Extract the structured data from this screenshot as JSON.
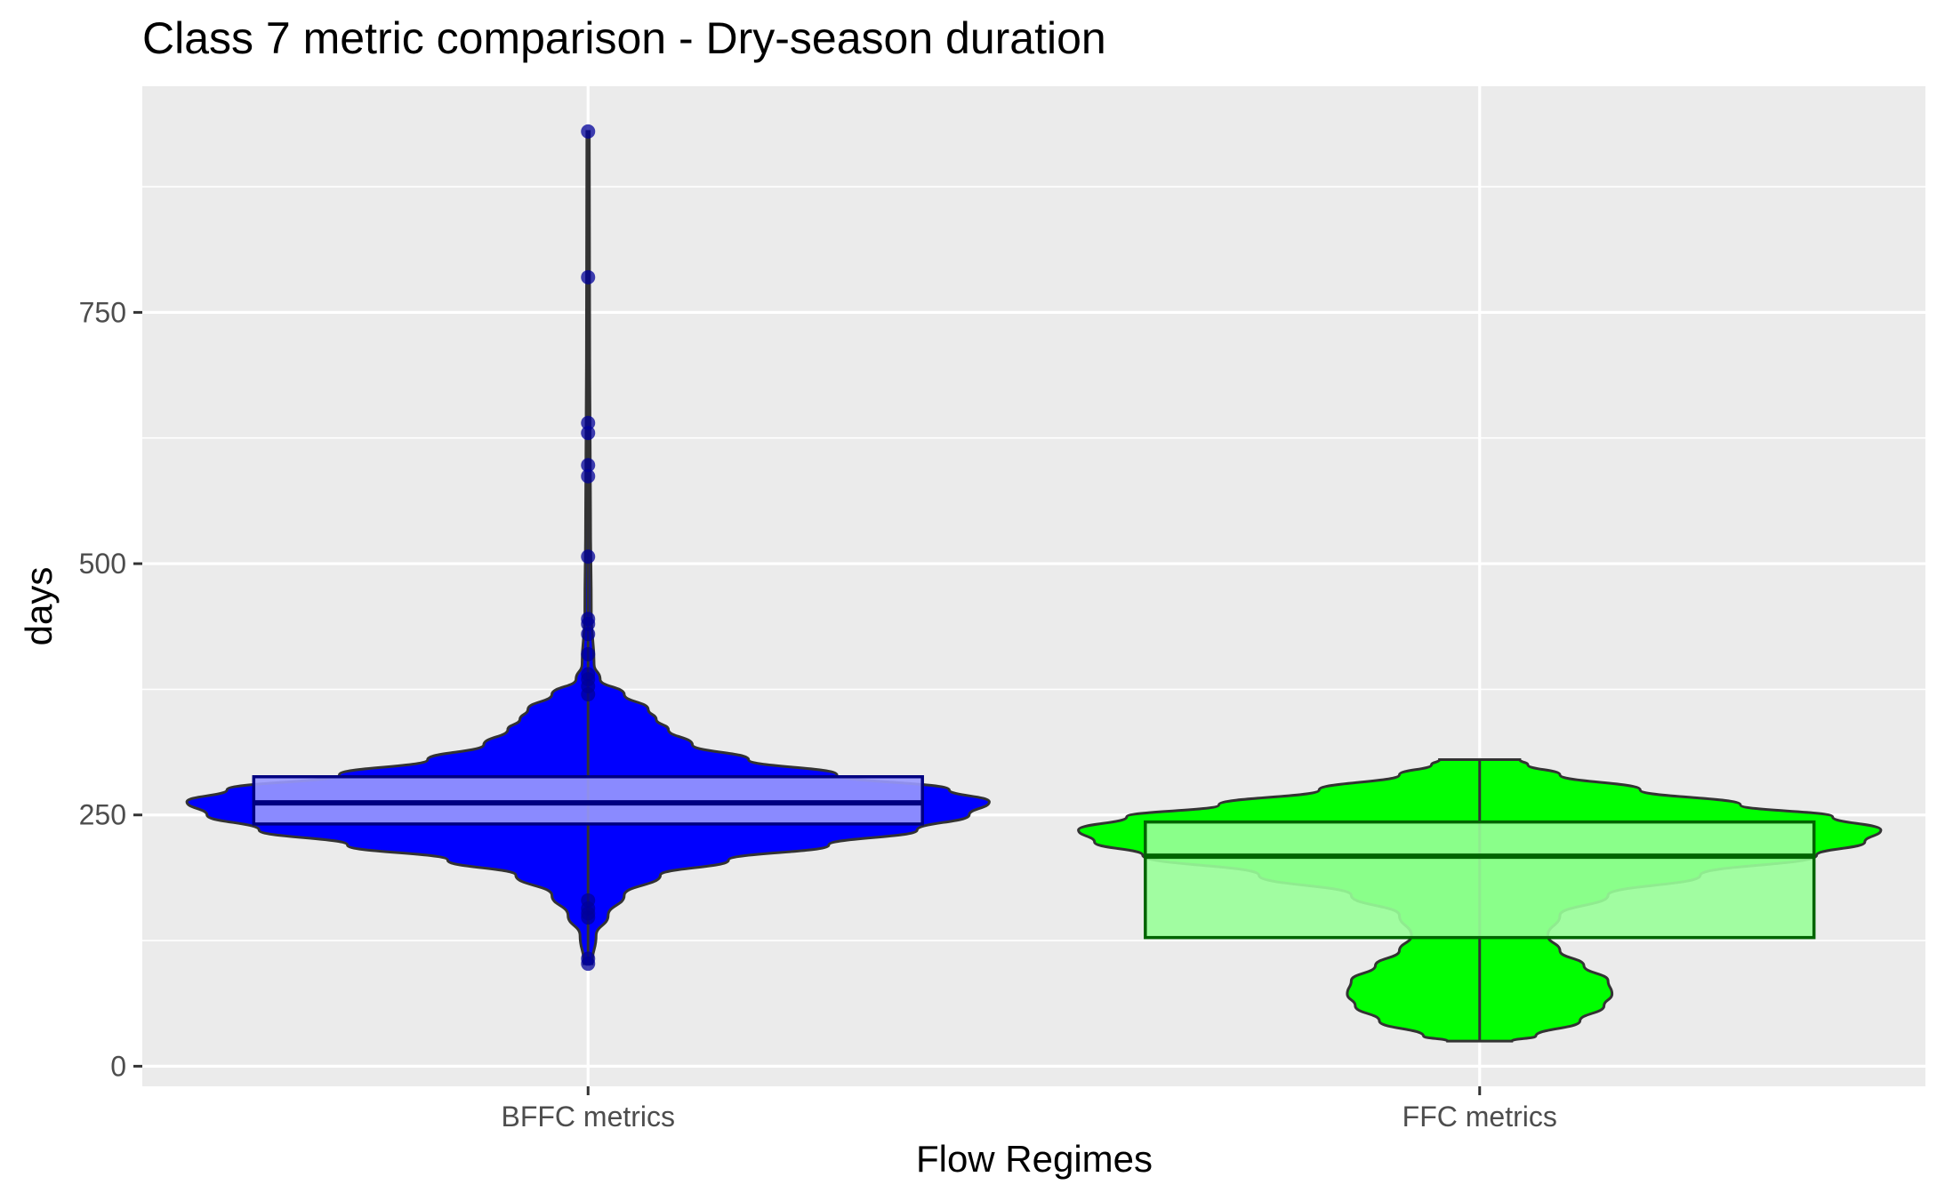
{
  "chart_data": {
    "type": "violin",
    "title": "Class 7 metric comparison - Dry-season duration",
    "xlabel": "Flow Regimes",
    "ylabel": "days",
    "ylim": [
      -20,
      975
    ],
    "yticks": [
      0,
      250,
      500,
      750
    ],
    "grid": true,
    "legend": "none",
    "categories": [
      "BFFC metrics",
      "FFC metrics"
    ],
    "series": [
      {
        "category": "BFFC metrics",
        "violin_color": "#0000ff",
        "box_fill": "#9999ff",
        "box_stroke": "#000080",
        "box": {
          "q1": 241,
          "median": 262,
          "q3": 288
        },
        "range": [
          102,
          930
        ],
        "outliers": [
          102,
          107,
          148,
          152,
          157,
          165,
          370,
          378,
          385,
          390,
          410,
          430,
          440,
          445,
          507,
          587,
          598,
          630,
          640,
          785,
          930
        ],
        "density": [
          [
            102,
            0.01
          ],
          [
            130,
            0.02
          ],
          [
            150,
            0.05
          ],
          [
            170,
            0.09
          ],
          [
            190,
            0.18
          ],
          [
            205,
            0.35
          ],
          [
            220,
            0.6
          ],
          [
            235,
            0.82
          ],
          [
            250,
            0.95
          ],
          [
            263,
            1.0
          ],
          [
            275,
            0.9
          ],
          [
            290,
            0.62
          ],
          [
            305,
            0.4
          ],
          [
            320,
            0.26
          ],
          [
            335,
            0.2
          ],
          [
            345,
            0.17
          ],
          [
            355,
            0.15
          ],
          [
            370,
            0.09
          ],
          [
            385,
            0.03
          ],
          [
            400,
            0.015
          ],
          [
            450,
            0.008
          ],
          [
            550,
            0.006
          ],
          [
            700,
            0.004
          ],
          [
            930,
            0.003
          ]
        ]
      },
      {
        "category": "FFC metrics",
        "violin_color": "#00ff00",
        "box_fill": "#99ff99",
        "box_stroke": "#006400",
        "box": {
          "q1": 128,
          "median": 209,
          "q3": 243
        },
        "range": [
          25,
          305
        ],
        "outliers": [],
        "density": [
          [
            25,
            0.08
          ],
          [
            30,
            0.14
          ],
          [
            45,
            0.25
          ],
          [
            60,
            0.31
          ],
          [
            72,
            0.33
          ],
          [
            85,
            0.32
          ],
          [
            100,
            0.26
          ],
          [
            115,
            0.2
          ],
          [
            130,
            0.17
          ],
          [
            150,
            0.2
          ],
          [
            170,
            0.32
          ],
          [
            190,
            0.55
          ],
          [
            210,
            0.84
          ],
          [
            223,
            0.96
          ],
          [
            235,
            1.0
          ],
          [
            248,
            0.88
          ],
          [
            260,
            0.65
          ],
          [
            275,
            0.4
          ],
          [
            290,
            0.2
          ],
          [
            300,
            0.12
          ],
          [
            305,
            0.1
          ]
        ]
      }
    ]
  }
}
